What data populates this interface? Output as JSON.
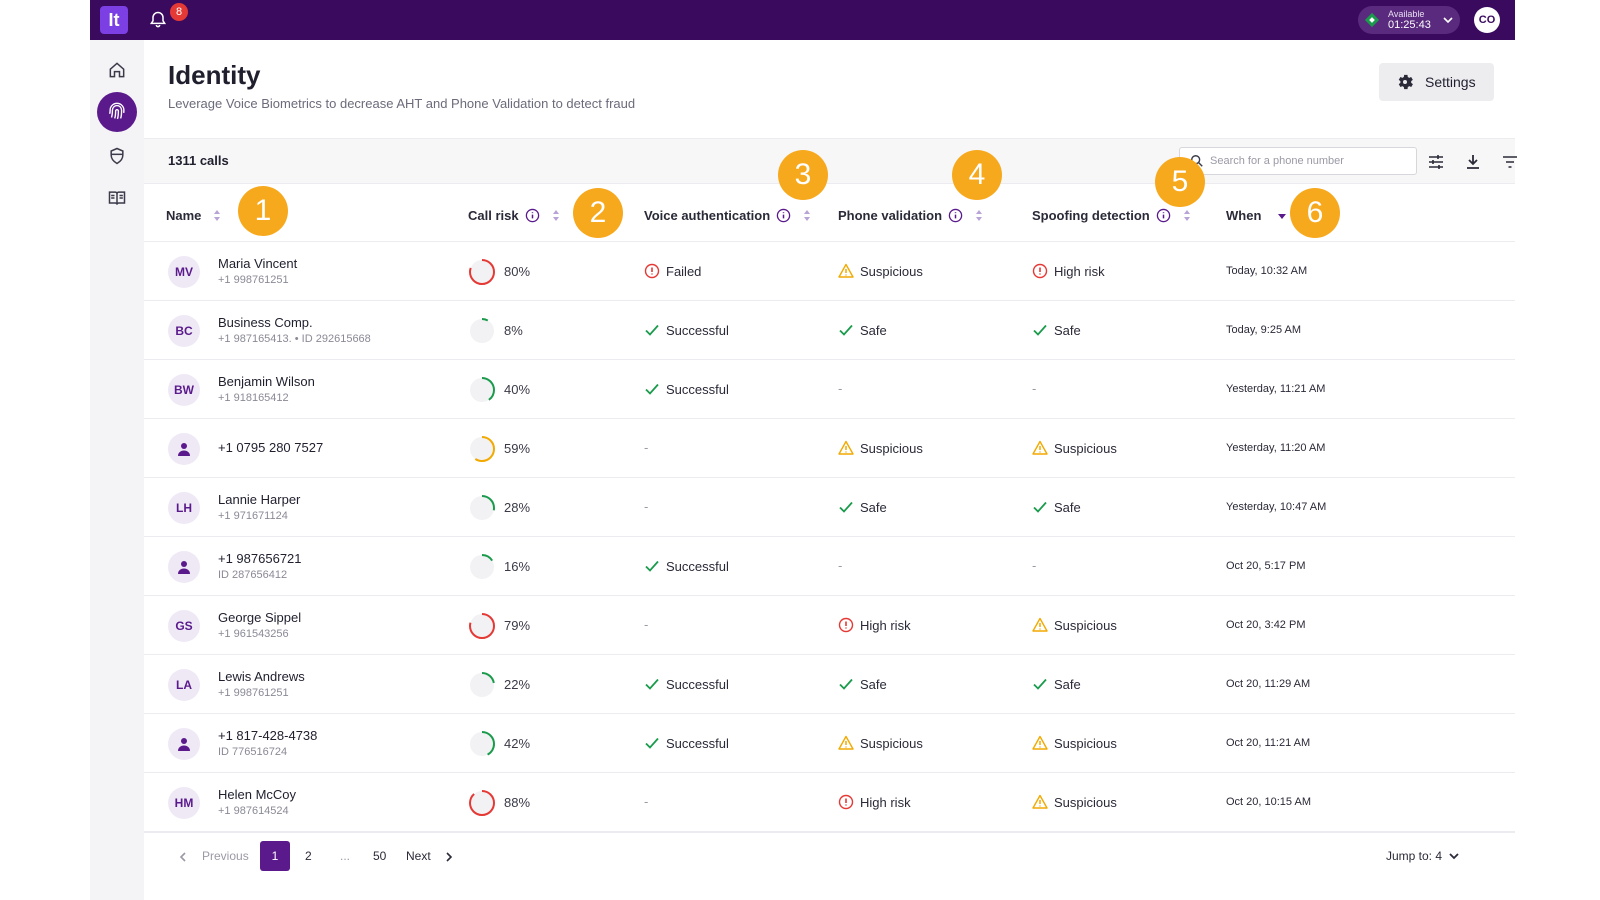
{
  "topbar": {
    "logo_text": "It",
    "notifications_count": "8",
    "status_label": "Available",
    "status_time": "01:25:43",
    "user_initials": "CO"
  },
  "sidebar": {
    "items": [
      {
        "name": "home-icon"
      },
      {
        "name": "fingerprint-icon",
        "active": true
      },
      {
        "name": "shield-icon"
      },
      {
        "name": "book-icon"
      }
    ]
  },
  "header": {
    "title": "Identity",
    "subtitle": "Leverage Voice Biometrics to decrease AHT and Phone Validation to detect fraud",
    "settings_label": "Settings"
  },
  "toolbar": {
    "calls_count": "1311 calls",
    "search_placeholder": "Search for a phone number"
  },
  "columns": {
    "name": "Name",
    "call_risk": "Call risk",
    "voice_auth": "Voice authentication",
    "phone_validation": "Phone validation",
    "spoofing": "Spoofing detection",
    "when": "When"
  },
  "badges": [
    "1",
    "2",
    "3",
    "4",
    "5",
    "6"
  ],
  "rows": [
    {
      "initials": "MV",
      "name": "Maria Vincent",
      "sub": "+1 998761251",
      "risk": "80%",
      "risk_level": 0.8,
      "voice": "Failed",
      "phone": "Suspicious",
      "spoof": "High risk",
      "when": "Today, 10:32 AM"
    },
    {
      "initials": "BC",
      "name": "Business Comp.",
      "sub": "+1 987165413. • ID 292615668",
      "risk": "8%",
      "risk_level": 0.08,
      "voice": "Successful",
      "phone": "Safe",
      "spoof": "Safe",
      "when": "Today, 9:25 AM"
    },
    {
      "initials": "BW",
      "name": "Benjamin Wilson",
      "sub": "+1 918165412",
      "risk": "40%",
      "risk_level": 0.4,
      "voice": "Successful",
      "phone": "-",
      "spoof": "-",
      "when": "Yesterday, 11:21 AM"
    },
    {
      "initials": "",
      "name": "+1 0795 280 7527",
      "sub": "",
      "risk": "59%",
      "risk_level": 0.59,
      "voice": "-",
      "phone": "Suspicious",
      "spoof": "Suspicious",
      "when": "Yesterday, 11:20 AM"
    },
    {
      "initials": "LH",
      "name": "Lannie Harper",
      "sub": "+1 971671124",
      "risk": "28%",
      "risk_level": 0.28,
      "voice": "-",
      "phone": "Safe",
      "spoof": "Safe",
      "when": "Yesterday, 10:47 AM"
    },
    {
      "initials": "",
      "name": "+1 987656721",
      "sub": "ID 287656412",
      "risk": "16%",
      "risk_level": 0.16,
      "voice": "Successful",
      "phone": "-",
      "spoof": "-",
      "when": "Oct 20, 5:17 PM"
    },
    {
      "initials": "GS",
      "name": "George Sippel",
      "sub": "+1 961543256",
      "risk": "79%",
      "risk_level": 0.79,
      "voice": "-",
      "phone": "High risk",
      "spoof": "Suspicious",
      "when": "Oct 20, 3:42 PM"
    },
    {
      "initials": "LA",
      "name": "Lewis Andrews",
      "sub": "+1 998761251",
      "risk": "22%",
      "risk_level": 0.22,
      "voice": "Successful",
      "phone": "Safe",
      "spoof": "Safe",
      "when": "Oct 20, 11:29 AM"
    },
    {
      "initials": "",
      "name": "+1 817-428-4738",
      "sub": "ID 776516724",
      "risk": "42%",
      "risk_level": 0.42,
      "voice": "Successful",
      "phone": "Suspicious",
      "spoof": "Suspicious",
      "when": "Oct 20, 11:21 AM"
    },
    {
      "initials": "HM",
      "name": "Helen McCoy",
      "sub": "+1 987614524",
      "risk": "88%",
      "risk_level": 0.88,
      "voice": "-",
      "phone": "High risk",
      "spoof": "Suspicious",
      "when": "Oct 20, 10:15 AM"
    }
  ],
  "pagination": {
    "previous": "Previous",
    "pages": [
      "1",
      "2",
      "...",
      "50"
    ],
    "current": "1",
    "next": "Next",
    "jump_label": "Jump to: 4"
  },
  "colors": {
    "brand": "#3a0a5e",
    "accent": "#5a1a8c",
    "badge": "#f7a91e",
    "success": "#1a9b4c",
    "warning": "#f2a900",
    "danger": "#e53935"
  }
}
